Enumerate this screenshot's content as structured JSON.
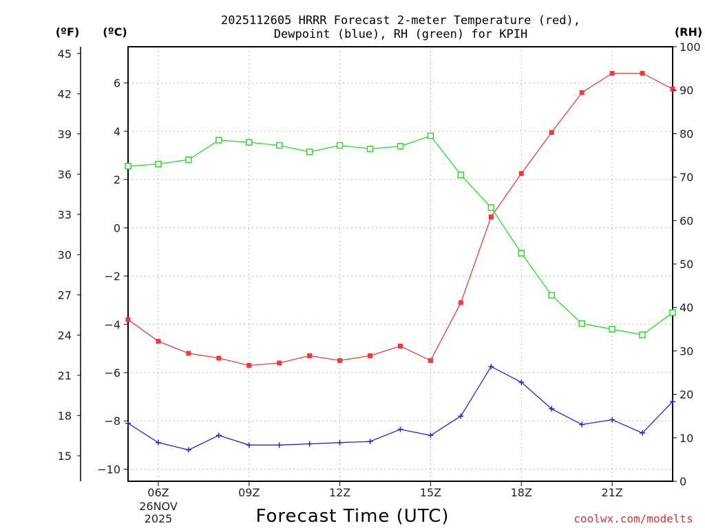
{
  "chart_data": {
    "type": "line",
    "title_lines": [
      "2025112605 HRRR Forecast 2-meter Temperature (red),",
      "Dewpoint (blue), RH (green) for KPIH"
    ],
    "xlabel": "Forecast Time (UTC)",
    "units": {
      "fahrenheit": "(ºF)",
      "celsius": "(ºC)",
      "rh": "(RH)"
    },
    "x_range_hours": [
      5,
      23
    ],
    "x_ticks": [
      {
        "hour": 6,
        "label": "06Z"
      },
      {
        "hour": 9,
        "label": "09Z"
      },
      {
        "hour": 12,
        "label": "12Z"
      },
      {
        "hour": 15,
        "label": "15Z"
      },
      {
        "hour": 18,
        "label": "18Z"
      },
      {
        "hour": 21,
        "label": "21Z"
      }
    ],
    "date_label": [
      "26NOV",
      "2025"
    ],
    "grid": true,
    "celsius_axis": {
      "range": [
        -10.5,
        7.5
      ],
      "ticks": [
        6,
        4,
        2,
        0,
        -2,
        -4,
        -6,
        -8,
        -10
      ]
    },
    "fahrenheit_axis": {
      "ticks": [
        45,
        42,
        39,
        36,
        33,
        30,
        27,
        24,
        21,
        18,
        15
      ]
    },
    "rh_axis": {
      "range": [
        0,
        100
      ],
      "ticks": [
        100,
        90,
        80,
        70,
        60,
        50,
        40,
        30,
        20,
        10,
        0
      ]
    },
    "hours": [
      5,
      6,
      7,
      8,
      9,
      10,
      11,
      12,
      13,
      14,
      15,
      16,
      17,
      18,
      19,
      20,
      21,
      22,
      23
    ],
    "series": [
      {
        "name": "2-meter Temperature",
        "axis": "celsius",
        "color": "#f03a3a",
        "marker": "filled-square",
        "values": [
          -3.8,
          -4.7,
          -5.2,
          -5.4,
          -5.7,
          -5.6,
          -5.3,
          -5.5,
          -5.3,
          -4.9,
          -5.5,
          -3.1,
          0.45,
          2.25,
          3.95,
          5.6,
          6.4,
          6.4,
          5.75
        ]
      },
      {
        "name": "Dewpoint",
        "axis": "celsius",
        "color": "#2020f0",
        "marker": "plus",
        "values": [
          -8.1,
          -8.9,
          -9.2,
          -8.6,
          -9.0,
          -9.0,
          -8.95,
          -8.9,
          -8.85,
          -8.35,
          -8.6,
          -7.8,
          -5.75,
          -6.4,
          -7.5,
          -8.15,
          -7.95,
          -8.5,
          -7.2
        ]
      },
      {
        "name": "RH",
        "axis": "rh",
        "color": "#20e020",
        "marker": "open-square",
        "values": [
          72.5,
          73,
          74,
          78.5,
          78,
          77.3,
          75.8,
          77.3,
          76.5,
          77.1,
          79.5,
          70.5,
          63,
          52.5,
          42.8,
          36.3,
          35,
          33.7,
          38.8
        ]
      }
    ],
    "credit": "coolwx.com/modelts"
  }
}
